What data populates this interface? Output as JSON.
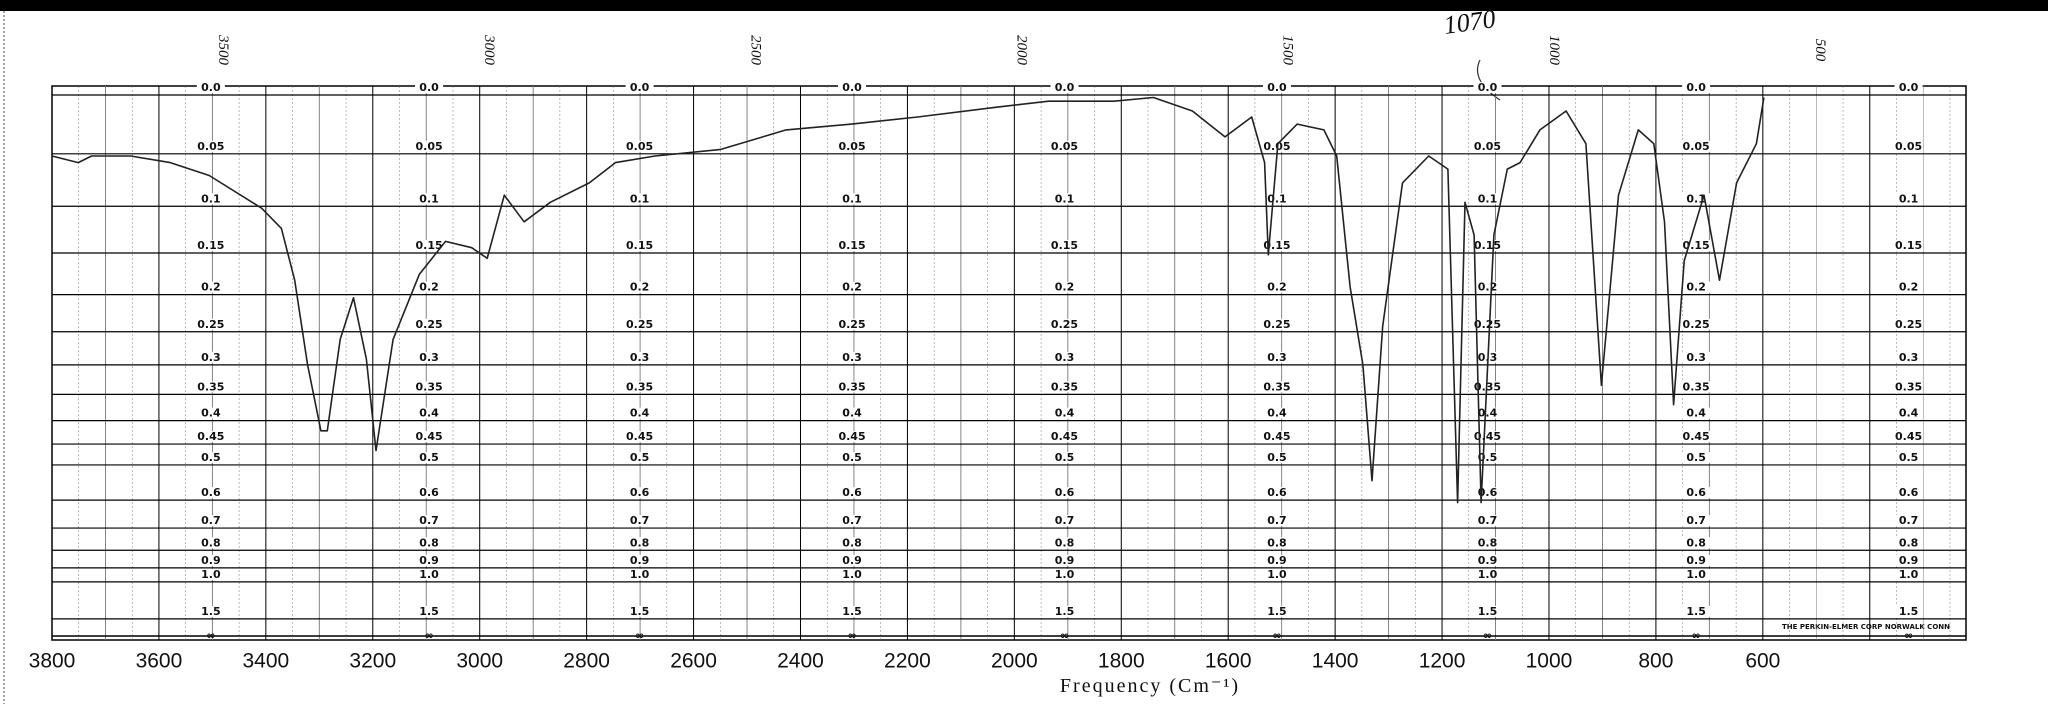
{
  "chart_data": {
    "type": "line",
    "x_label": "Frequency (Cm⁻¹)",
    "annotation": "1070",
    "maker_note": "THE PERKIN-ELMER CORP NORWALK CONN",
    "y_bottom_label": "∞",
    "xlim": [
      3800,
      220
    ],
    "xticks": [
      3800,
      3600,
      3400,
      3200,
      3000,
      2800,
      2600,
      2400,
      2200,
      2000,
      1800,
      1600,
      1400,
      1200,
      1000,
      800,
      600
    ],
    "x2lim": [
      3820,
      225
    ],
    "x2ticks": [
      3500,
      3000,
      2500,
      2000,
      1500,
      1000,
      500
    ],
    "yscale": "absorbance",
    "yticks": [
      {
        "value": 0,
        "label": "0.0"
      },
      0.05,
      0.1,
      0.15,
      0.2,
      0.25,
      0.3,
      0.35,
      0.4,
      0.45,
      0.5,
      0.6,
      0.7,
      0.8,
      0.9,
      {
        "value": 1,
        "label": "1.0"
      },
      1.5
    ],
    "grid": true,
    "color": "#222222",
    "x": [
      3800,
      3751,
      3726,
      3653,
      3579,
      3506,
      3408,
      3371,
      3346,
      3322,
      3297,
      3285,
      3261,
      3236,
      3212,
      3194,
      3162,
      3113,
      3064,
      3015,
      2986,
      2954,
      2917,
      2868,
      2795,
      2746,
      2672,
      2549,
      2427,
      2304,
      2181,
      2035,
      1936,
      1814,
      1740,
      1667,
      1606,
      1556,
      1532,
      1525,
      1507,
      1471,
      1421,
      1397,
      1372,
      1348,
      1331,
      1311,
      1274,
      1225,
      1189,
      1171,
      1157,
      1140,
      1127,
      1103,
      1078,
      1054,
      1017,
      968,
      931,
      902,
      870,
      833,
      804,
      784,
      767,
      747,
      710,
      681,
      649,
      612,
      598
    ],
    "values": [
      0.052,
      0.058,
      0.052,
      0.052,
      0.058,
      0.07,
      0.102,
      0.123,
      0.182,
      0.3,
      0.421,
      0.421,
      0.261,
      0.204,
      0.291,
      0.465,
      0.261,
      0.175,
      0.137,
      0.144,
      0.156,
      0.089,
      0.116,
      0.096,
      0.077,
      0.058,
      0.052,
      0.046,
      0.029,
      0.024,
      0.018,
      0.01,
      0.005,
      0.005,
      0.002,
      0.013,
      0.035,
      0.018,
      0.058,
      0.152,
      0.041,
      0.024,
      0.029,
      0.052,
      0.19,
      0.3,
      0.542,
      0.242,
      0.077,
      0.052,
      0.064,
      0.608,
      0.096,
      0.13,
      0.608,
      0.13,
      0.064,
      0.058,
      0.029,
      0.013,
      0.041,
      0.334,
      0.089,
      0.029,
      0.041,
      0.116,
      0.369,
      0.159,
      0.089,
      0.182,
      0.077,
      0.041,
      0.002
    ]
  }
}
